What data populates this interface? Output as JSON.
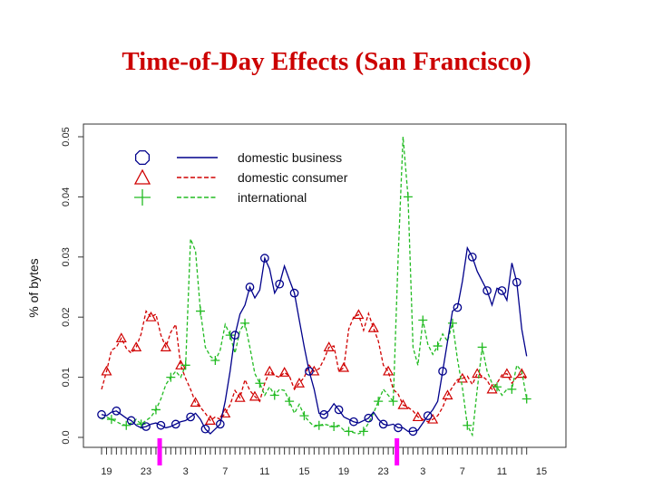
{
  "slide": {
    "title": "Time-of-Day Effects (San Francisco)"
  },
  "chart_data": {
    "type": "line",
    "title": "",
    "xlabel": "",
    "ylabel": "% of bytes",
    "ylim": [
      0,
      0.052
    ],
    "grid": false,
    "legend_placement": "top-left",
    "x_tick_labels": [
      "19",
      "23",
      "3",
      "7",
      "11",
      "15",
      "19",
      "23",
      "3",
      "7",
      "11",
      "15"
    ],
    "y_tick_values": [
      0.0,
      0.01,
      0.02,
      0.03,
      0.04,
      0.05
    ],
    "y_tick_labels": [
      "0.0",
      "0.01",
      "0.02",
      "0.03",
      "0.04",
      "0.05"
    ],
    "hour_markers_color": "#ff00ff",
    "series": [
      {
        "name": "domestic business",
        "color": "#00008b",
        "line": "solid",
        "marker": "circle",
        "values": [
          0.0038,
          0.0036,
          0.0042,
          0.0044,
          0.0038,
          0.0032,
          0.0028,
          0.002,
          0.0016,
          0.0018,
          0.0022,
          0.0024,
          0.002,
          0.0016,
          0.0018,
          0.0022,
          0.0026,
          0.0028,
          0.0034,
          0.004,
          0.003,
          0.0014,
          0.0006,
          0.0014,
          0.0022,
          0.006,
          0.011,
          0.017,
          0.0205,
          0.022,
          0.025,
          0.0232,
          0.0245,
          0.0298,
          0.028,
          0.024,
          0.0255,
          0.0285,
          0.0262,
          0.024,
          0.0195,
          0.015,
          0.011,
          0.008,
          0.004,
          0.0038,
          0.0044,
          0.0056,
          0.0046,
          0.0034,
          0.003,
          0.0026,
          0.0024,
          0.0028,
          0.0032,
          0.0042,
          0.003,
          0.0022,
          0.002,
          0.0022,
          0.0016,
          0.0016,
          0.001,
          0.001,
          0.0012,
          0.0024,
          0.0036,
          0.0046,
          0.006,
          0.011,
          0.016,
          0.021,
          0.0216,
          0.026,
          0.0315,
          0.03,
          0.0276,
          0.026,
          0.0244,
          0.022,
          0.0248,
          0.0244,
          0.0228,
          0.029,
          0.0258,
          0.018,
          0.0135
        ]
      },
      {
        "name": "domestic consumer",
        "color": "#d00000",
        "line": "dashed",
        "marker": "triangle",
        "values": [
          0.008,
          0.011,
          0.0145,
          0.015,
          0.0165,
          0.0148,
          0.014,
          0.015,
          0.0172,
          0.021,
          0.02,
          0.0205,
          0.017,
          0.015,
          0.0175,
          0.0188,
          0.012,
          0.0098,
          0.008,
          0.0058,
          0.005,
          0.004,
          0.0028,
          0.0034,
          0.003,
          0.004,
          0.0054,
          0.0078,
          0.0066,
          0.0096,
          0.0078,
          0.0068,
          0.006,
          0.009,
          0.011,
          0.0103,
          0.01,
          0.0108,
          0.0102,
          0.008,
          0.009,
          0.01,
          0.012,
          0.011,
          0.0114,
          0.013,
          0.015,
          0.0152,
          0.011,
          0.0116,
          0.018,
          0.02,
          0.0204,
          0.0178,
          0.0206,
          0.0182,
          0.016,
          0.012,
          0.011,
          0.008,
          0.0072,
          0.0054,
          0.005,
          0.0044,
          0.0034,
          0.003,
          0.0026,
          0.003,
          0.0036,
          0.005,
          0.007,
          0.0084,
          0.0096,
          0.0098,
          0.0102,
          0.0088,
          0.0106,
          0.0102,
          0.0095,
          0.008,
          0.009,
          0.0104,
          0.0106,
          0.009,
          0.01,
          0.0106,
          0.0096
        ]
      },
      {
        "name": "international",
        "color": "#22bb22",
        "line": "dashed",
        "marker": "plus",
        "values": [
          0.003,
          0.0034,
          0.003,
          0.0026,
          0.0022,
          0.002,
          0.0024,
          0.003,
          0.0022,
          0.0028,
          0.0034,
          0.0046,
          0.0064,
          0.0088,
          0.01,
          0.011,
          0.01,
          0.012,
          0.033,
          0.031,
          0.021,
          0.015,
          0.0135,
          0.0128,
          0.0145,
          0.0188,
          0.017,
          0.014,
          0.0178,
          0.019,
          0.015,
          0.0106,
          0.009,
          0.007,
          0.0084,
          0.007,
          0.008,
          0.0078,
          0.006,
          0.004,
          0.0055,
          0.0036,
          0.0026,
          0.0018,
          0.002,
          0.0022,
          0.002,
          0.0018,
          0.002,
          0.0012,
          0.001,
          0.0008,
          0.0006,
          0.001,
          0.0024,
          0.004,
          0.006,
          0.008,
          0.007,
          0.006,
          0.03,
          0.05,
          0.04,
          0.015,
          0.012,
          0.0195,
          0.0155,
          0.0138,
          0.0152,
          0.0172,
          0.016,
          0.019,
          0.013,
          0.0082,
          0.002,
          0.0004,
          0.008,
          0.015,
          0.011,
          0.009,
          0.0084,
          0.007,
          0.008,
          0.008,
          0.012,
          0.011,
          0.0064
        ]
      }
    ]
  }
}
